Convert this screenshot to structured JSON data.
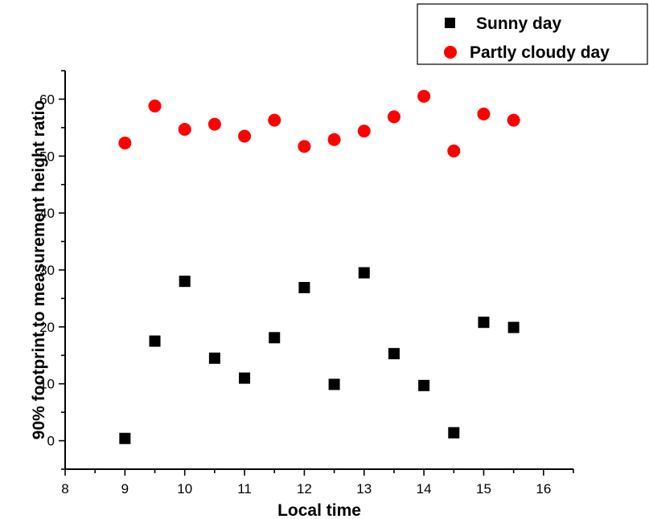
{
  "chart_data": {
    "type": "scatter",
    "title": "",
    "xlabel": "Local time",
    "ylabel": "90% footprint to measurement height ratio",
    "xlim": [
      8,
      16.5
    ],
    "ylim": [
      -5,
      65
    ],
    "x_ticks": [
      8,
      9,
      10,
      11,
      12,
      13,
      14,
      15,
      16
    ],
    "y_ticks": [
      0,
      10,
      20,
      30,
      40,
      50,
      60
    ],
    "legend_position": "top-right",
    "grid": false,
    "series": [
      {
        "name": "Sunny day",
        "marker": "square",
        "color": "#000000",
        "points": [
          {
            "x": 9,
            "y": 0.4
          },
          {
            "x": 9.5,
            "y": 17.5
          },
          {
            "x": 10,
            "y": 28.0
          },
          {
            "x": 10.5,
            "y": 14.5
          },
          {
            "x": 11,
            "y": 11.0
          },
          {
            "x": 11.5,
            "y": 18.1
          },
          {
            "x": 12,
            "y": 26.9
          },
          {
            "x": 12.5,
            "y": 9.9
          },
          {
            "x": 13,
            "y": 29.5
          },
          {
            "x": 13.5,
            "y": 15.3
          },
          {
            "x": 14,
            "y": 9.7
          },
          {
            "x": 14.5,
            "y": 1.4
          },
          {
            "x": 15,
            "y": 20.8
          },
          {
            "x": 15.5,
            "y": 19.9
          }
        ]
      },
      {
        "name": "Partly cloudy day",
        "marker": "circle",
        "color": "#ff0000",
        "points": [
          {
            "x": 9,
            "y": 52.3
          },
          {
            "x": 9.5,
            "y": 58.8
          },
          {
            "x": 10,
            "y": 54.7
          },
          {
            "x": 10.5,
            "y": 55.6
          },
          {
            "x": 11,
            "y": 53.5
          },
          {
            "x": 11.5,
            "y": 56.3
          },
          {
            "x": 12,
            "y": 51.7
          },
          {
            "x": 12.5,
            "y": 52.9
          },
          {
            "x": 13,
            "y": 54.4
          },
          {
            "x": 13.5,
            "y": 56.9
          },
          {
            "x": 14,
            "y": 60.5
          },
          {
            "x": 14.5,
            "y": 50.9
          },
          {
            "x": 15,
            "y": 57.4
          },
          {
            "x": 15.5,
            "y": 56.3
          }
        ]
      }
    ]
  }
}
